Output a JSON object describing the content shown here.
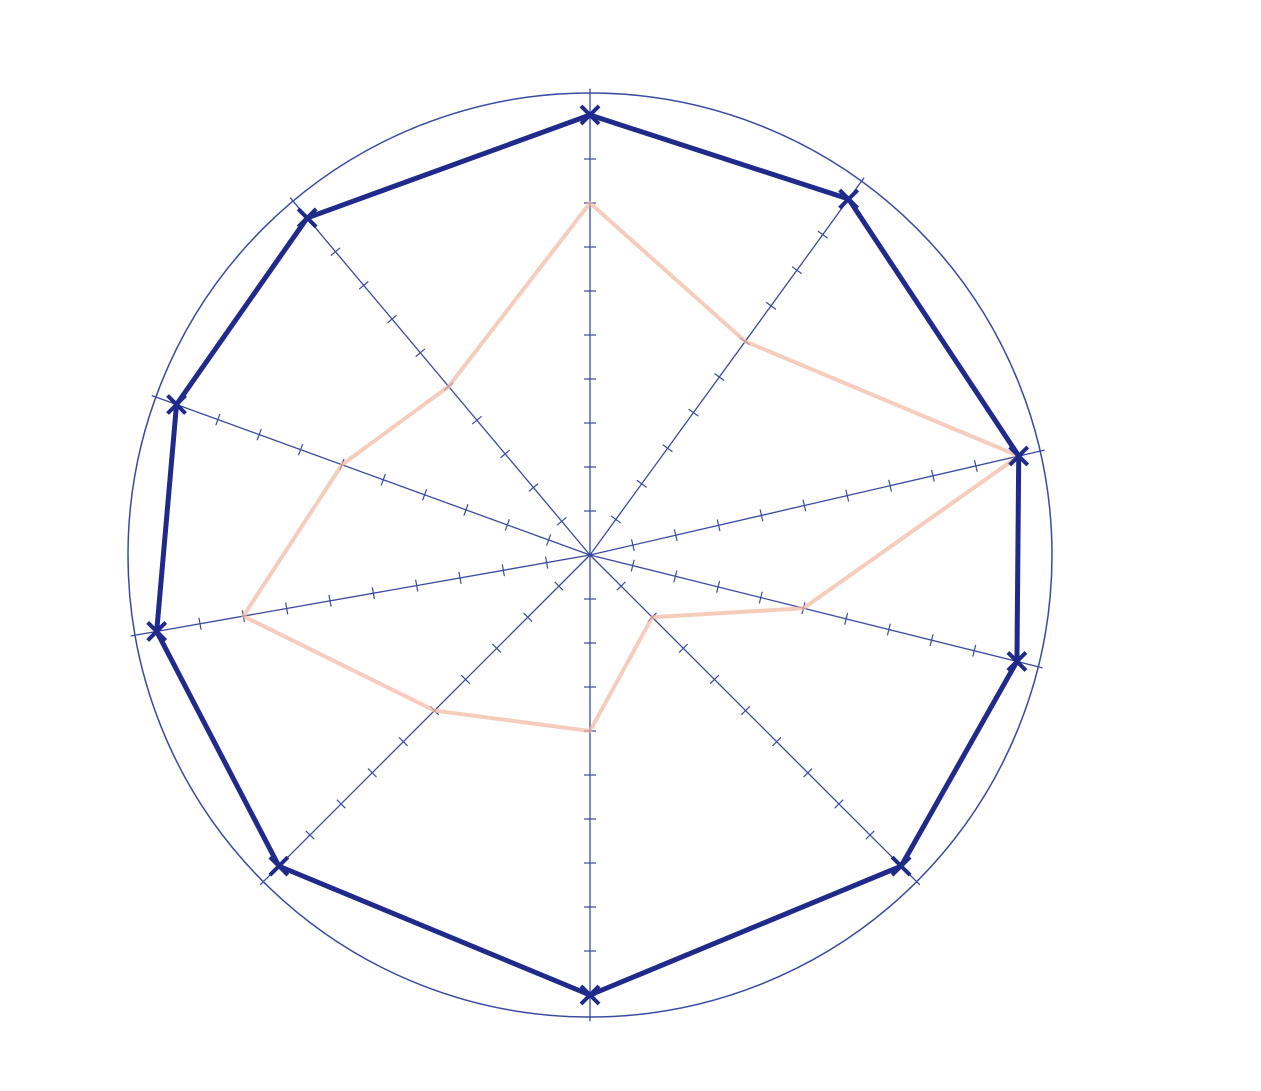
{
  "chart_data": {
    "type": "radar",
    "title": "",
    "axes": [
      "",
      "",
      "",
      "",
      "",
      "",
      "",
      "",
      "",
      ""
    ],
    "scale": {
      "min": 0,
      "max": 10,
      "ticks": 10
    },
    "series": [
      {
        "values": [
          10,
          10,
          10,
          10,
          10,
          10,
          10,
          10,
          10,
          10
        ],
        "color": "#1f2a8a"
      },
      {
        "values": [
          8,
          6,
          10,
          5,
          2,
          4,
          5,
          8,
          6,
          5
        ],
        "color": "#f2b8a0"
      }
    ],
    "grid": true
  },
  "colors": {
    "axis": "#3a4aa0",
    "outline": "#3a4aa0"
  }
}
